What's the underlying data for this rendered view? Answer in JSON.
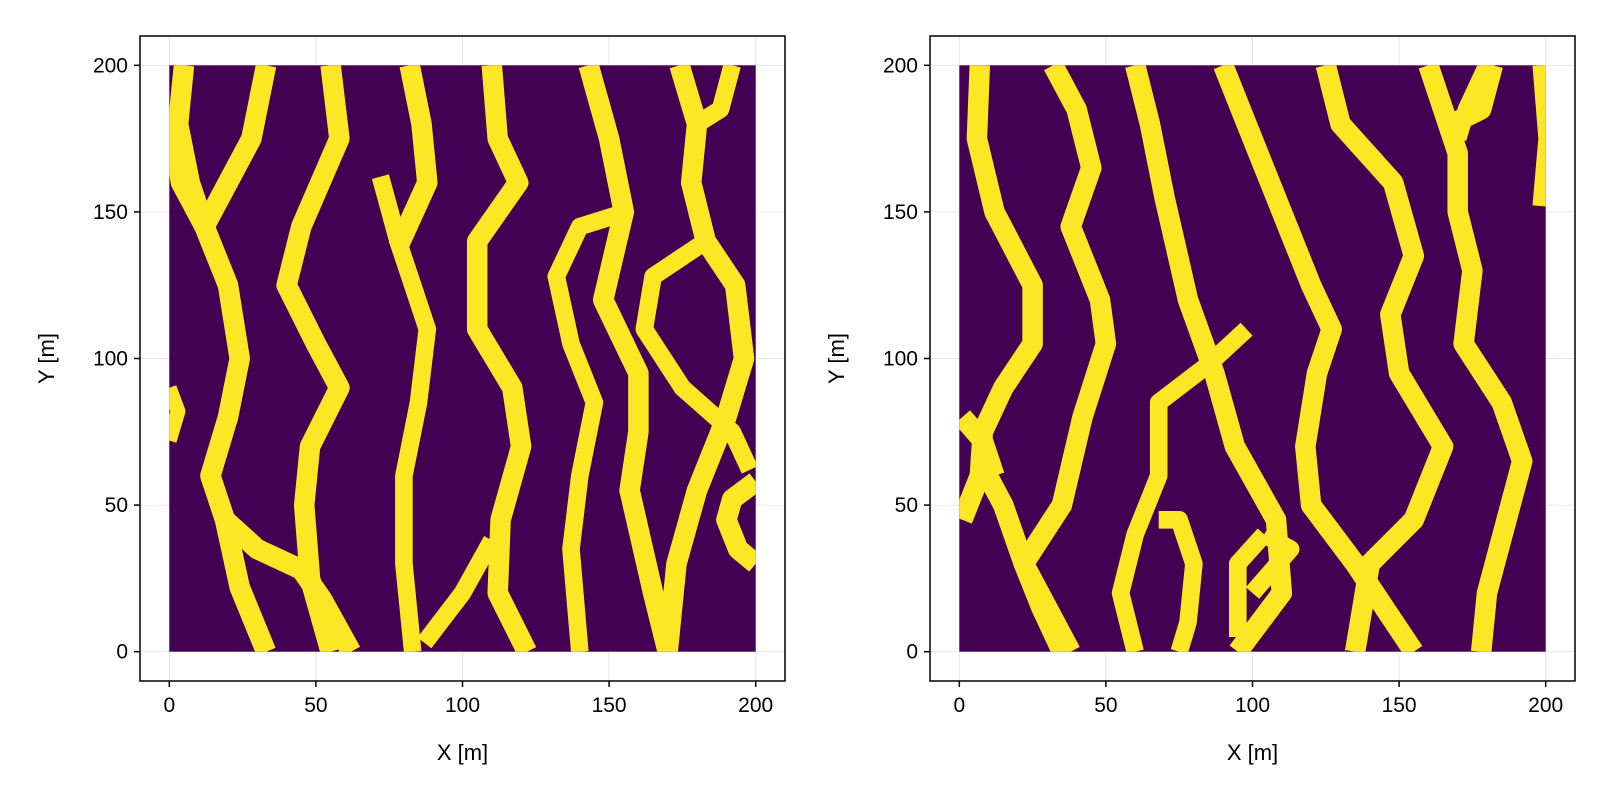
{
  "chart_data": [
    {
      "type": "heatmap",
      "title": "",
      "xlabel": "X [m]",
      "ylabel": "Y [m]",
      "xlim": [
        -10,
        210
      ],
      "ylim": [
        -10,
        210
      ],
      "xticks": [
        0,
        50,
        100,
        150,
        200
      ],
      "yticks": [
        0,
        50,
        100,
        150,
        200
      ],
      "grid": true,
      "colors": {
        "background": "#440154",
        "channel": "#fde725"
      },
      "extent": {
        "x": [
          0,
          200
        ],
        "y": [
          0,
          200
        ]
      },
      "channels": [
        {
          "width": 7,
          "points": [
            [
              5,
              200
            ],
            [
              3,
              180
            ],
            [
              7,
              160
            ],
            [
              12,
              145
            ],
            [
              20,
              125
            ],
            [
              24,
              100
            ],
            [
              20,
              80
            ],
            [
              14,
              60
            ],
            [
              19,
              45
            ],
            [
              24,
              22
            ],
            [
              33,
              0
            ]
          ]
        },
        {
          "width": 7,
          "points": [
            [
              33,
              200
            ],
            [
              28,
              175
            ],
            [
              12,
              145
            ]
          ]
        },
        {
          "width": 7,
          "points": [
            [
              1,
              178
            ],
            [
              4,
              160
            ],
            [
              12,
              145
            ]
          ]
        },
        {
          "width": 7,
          "points": [
            [
              19,
              45
            ],
            [
              30,
              35
            ],
            [
              45,
              28
            ],
            [
              52,
              18
            ],
            [
              62,
              0
            ]
          ]
        },
        {
          "width": 7,
          "points": [
            [
              55,
              200
            ],
            [
              58,
              175
            ],
            [
              45,
              145
            ],
            [
              40,
              125
            ],
            [
              50,
              105
            ],
            [
              58,
              90
            ],
            [
              48,
              70
            ],
            [
              46,
              50
            ],
            [
              48,
              25
            ],
            [
              55,
              0
            ]
          ]
        },
        {
          "width": 6,
          "points": [
            [
              72,
              162
            ],
            [
              78,
              140
            ],
            [
              83,
              125
            ],
            [
              88,
              110
            ],
            [
              85,
              85
            ],
            [
              80,
              60
            ],
            [
              80,
              30
            ],
            [
              83,
              0
            ]
          ]
        },
        {
          "width": 7,
          "points": [
            [
              82,
              200
            ],
            [
              86,
              180
            ],
            [
              88,
              160
            ],
            [
              78,
              138
            ]
          ]
        },
        {
          "width": 7,
          "points": [
            [
              110,
              200
            ],
            [
              112,
              175
            ],
            [
              119,
              160
            ],
            [
              105,
              140
            ],
            [
              105,
              110
            ],
            [
              117,
              90
            ],
            [
              120,
              70
            ],
            [
              113,
              45
            ],
            [
              112,
              20
            ],
            [
              122,
              0
            ]
          ]
        },
        {
          "width": 6,
          "points": [
            [
              110,
              38
            ],
            [
              100,
              20
            ],
            [
              87,
              3
            ]
          ]
        },
        {
          "width": 7,
          "points": [
            [
              143,
              200
            ],
            [
              150,
              175
            ],
            [
              155,
              150
            ],
            [
              148,
              120
            ],
            [
              160,
              95
            ],
            [
              160,
              75
            ],
            [
              157,
              55
            ],
            [
              165,
              20
            ],
            [
              170,
              0
            ]
          ]
        },
        {
          "width": 6,
          "points": [
            [
              156,
              150
            ],
            [
              140,
              145
            ],
            [
              132,
              128
            ],
            [
              137,
              105
            ],
            [
              145,
              85
            ],
            [
              140,
              60
            ],
            [
              137,
              35
            ],
            [
              140,
              0
            ]
          ]
        },
        {
          "width": 7,
          "points": [
            [
              174,
              200
            ],
            [
              180,
              180
            ],
            [
              178,
              160
            ],
            [
              183,
              140
            ],
            [
              193,
              125
            ],
            [
              196,
              100
            ],
            [
              190,
              80
            ],
            [
              180,
              55
            ],
            [
              173,
              30
            ],
            [
              170,
              0
            ]
          ]
        },
        {
          "width": 6,
          "points": [
            [
              192,
              200
            ],
            [
              188,
              185
            ],
            [
              180,
              180
            ]
          ]
        },
        {
          "width": 6,
          "points": [
            [
              183,
              140
            ],
            [
              165,
              128
            ],
            [
              162,
              110
            ],
            [
              175,
              90
            ],
            [
              192,
              75
            ],
            [
              198,
              62
            ]
          ]
        },
        {
          "width": 7,
          "points": [
            [
              200,
              58
            ],
            [
              192,
              52
            ],
            [
              190,
              45
            ],
            [
              194,
              35
            ],
            [
              200,
              30
            ]
          ]
        },
        {
          "width": 5,
          "points": [
            [
              0,
              90
            ],
            [
              3,
              82
            ],
            [
              0,
              72
            ]
          ]
        }
      ]
    },
    {
      "type": "heatmap",
      "title": "",
      "xlabel": "X [m]",
      "ylabel": "Y [m]",
      "xlim": [
        -10,
        210
      ],
      "ylim": [
        -10,
        210
      ],
      "xticks": [
        0,
        50,
        100,
        150,
        200
      ],
      "yticks": [
        0,
        50,
        100,
        150,
        200
      ],
      "grid": true,
      "colors": {
        "background": "#440154",
        "channel": "#fde725"
      },
      "extent": {
        "x": [
          0,
          200
        ],
        "y": [
          0,
          200
        ]
      },
      "channels": [
        {
          "width": 7,
          "points": [
            [
              7,
              200
            ],
            [
              6,
              175
            ],
            [
              12,
              150
            ],
            [
              25,
              125
            ],
            [
              25,
              105
            ],
            [
              15,
              90
            ],
            [
              8,
              75
            ],
            [
              7,
              60
            ],
            [
              1,
              45
            ]
          ]
        },
        {
          "width": 7,
          "points": [
            [
              7,
              65
            ],
            [
              15,
              50
            ],
            [
              22,
              30
            ],
            [
              28,
              15
            ],
            [
              35,
              0
            ]
          ]
        },
        {
          "width": 7,
          "points": [
            [
              1,
              80
            ],
            [
              8,
              72
            ],
            [
              12,
              60
            ]
          ]
        },
        {
          "width": 7,
          "points": [
            [
              32,
              200
            ],
            [
              40,
              185
            ],
            [
              45,
              165
            ],
            [
              38,
              145
            ],
            [
              48,
              120
            ],
            [
              50,
              105
            ],
            [
              42,
              80
            ],
            [
              35,
              50
            ],
            [
              22,
              30
            ],
            [
              30,
              15
            ],
            [
              38,
              0
            ]
          ]
        },
        {
          "width": 7,
          "points": [
            [
              60,
              200
            ],
            [
              65,
              180
            ],
            [
              70,
              155
            ],
            [
              78,
              120
            ],
            [
              87,
              95
            ],
            [
              94,
              70
            ],
            [
              108,
              45
            ],
            [
              110,
              20
            ],
            [
              95,
              0
            ]
          ]
        },
        {
          "width": 6,
          "points": [
            [
              98,
              110
            ],
            [
              85,
              98
            ],
            [
              68,
              85
            ],
            [
              68,
              60
            ],
            [
              60,
              40
            ],
            [
              55,
              20
            ],
            [
              60,
              0
            ]
          ]
        },
        {
          "width": 6,
          "points": [
            [
              68,
              45
            ],
            [
              75,
              45
            ],
            [
              80,
              30
            ],
            [
              78,
              10
            ],
            [
              75,
              0
            ]
          ]
        },
        {
          "width": 7,
          "points": [
            [
              90,
              200
            ],
            [
              98,
              180
            ],
            [
              110,
              150
            ],
            [
              120,
              125
            ],
            [
              127,
              110
            ],
            [
              122,
              95
            ],
            [
              118,
              70
            ],
            [
              120,
              50
            ],
            [
              135,
              30
            ],
            [
              145,
              15
            ],
            [
              155,
              0
            ]
          ]
        },
        {
          "width": 6,
          "points": [
            [
              104,
              40
            ],
            [
              95,
              30
            ],
            [
              95,
              5
            ]
          ]
        },
        {
          "width": 6,
          "points": [
            [
              104,
              40
            ],
            [
              113,
              35
            ],
            [
              100,
              20
            ]
          ]
        },
        {
          "width": 7,
          "points": [
            [
              125,
              200
            ],
            [
              130,
              180
            ],
            [
              148,
              160
            ],
            [
              155,
              135
            ],
            [
              147,
              115
            ],
            [
              150,
              95
            ],
            [
              165,
              70
            ],
            [
              155,
              45
            ],
            [
              140,
              30
            ],
            [
              135,
              0
            ]
          ]
        },
        {
          "width": 7,
          "points": [
            [
              160,
              200
            ],
            [
              165,
              185
            ],
            [
              170,
              170
            ],
            [
              170,
              150
            ],
            [
              175,
              130
            ],
            [
              172,
              105
            ],
            [
              185,
              85
            ],
            [
              192,
              65
            ],
            [
              188,
              50
            ],
            [
              180,
              20
            ],
            [
              178,
              0
            ]
          ]
        },
        {
          "width": 6,
          "points": [
            [
              180,
              200
            ],
            [
              173,
              185
            ],
            [
              170,
              175
            ]
          ]
        },
        {
          "width": 5,
          "points": [
            [
              198,
              200
            ],
            [
              200,
              175
            ],
            [
              198,
              152
            ]
          ]
        },
        {
          "width": 7,
          "points": [
            [
              168,
              180
            ],
            [
              178,
              185
            ],
            [
              182,
              200
            ]
          ]
        }
      ]
    }
  ]
}
